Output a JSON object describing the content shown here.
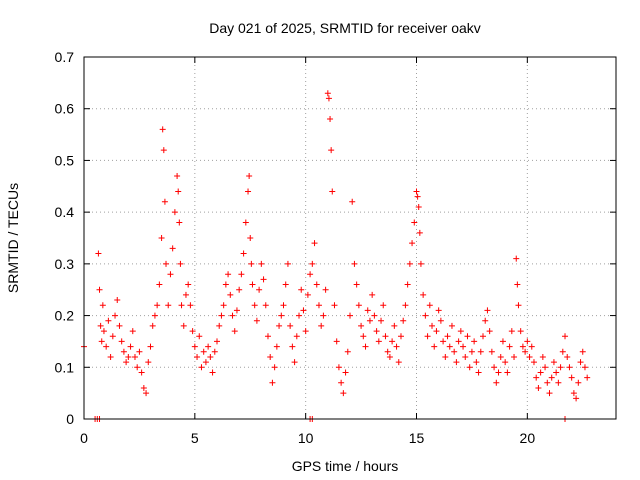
{
  "chart_data": {
    "type": "scatter",
    "title": "Day 021 of 2025, SRMTID for receiver oakv",
    "xlabel": "GPS time / hours",
    "ylabel": "SRMTID / TECUs",
    "xlim": [
      0,
      24
    ],
    "ylim": [
      0,
      0.7
    ],
    "xticks": [
      0,
      5,
      10,
      15,
      20
    ],
    "xtick_labels": [
      "0",
      "5",
      "10",
      "15",
      "20"
    ],
    "yticks": [
      0,
      0.1,
      0.2,
      0.3,
      0.4,
      0.5,
      0.6,
      0.7
    ],
    "ytick_labels": [
      "0",
      "0.1",
      "0.2",
      "0.3",
      "0.4",
      "0.5",
      "0.6",
      "0.7"
    ],
    "grid": true,
    "marker": "+",
    "marker_color": "#ff0000",
    "series": [
      {
        "name": "SRMTID",
        "x": [
          0.0,
          0.5,
          0.65,
          0.7,
          0.75,
          0.8,
          0.85,
          0.9,
          1.0,
          1.1,
          1.2,
          1.3,
          1.4,
          1.5,
          1.6,
          1.7,
          1.8,
          1.9,
          2.0,
          2.1,
          2.2,
          2.3,
          2.4,
          2.5,
          2.6,
          2.7,
          2.8,
          2.9,
          3.0,
          3.1,
          3.2,
          3.3,
          3.4,
          3.5,
          3.55,
          3.6,
          3.65,
          3.7,
          3.8,
          3.9,
          4.0,
          4.1,
          4.2,
          4.25,
          4.3,
          4.35,
          4.4,
          4.5,
          4.6,
          4.7,
          4.8,
          4.9,
          5.0,
          5.1,
          5.2,
          5.3,
          5.4,
          5.5,
          5.6,
          5.7,
          5.8,
          5.9,
          6.0,
          6.1,
          6.2,
          6.3,
          6.4,
          6.5,
          6.6,
          6.7,
          6.8,
          6.9,
          7.0,
          7.1,
          7.2,
          7.3,
          7.4,
          7.45,
          7.5,
          7.55,
          7.6,
          7.7,
          7.8,
          7.9,
          8.0,
          8.1,
          8.2,
          8.3,
          8.4,
          8.5,
          8.6,
          8.7,
          8.8,
          8.9,
          9.0,
          9.1,
          9.2,
          9.3,
          9.4,
          9.5,
          9.6,
          9.7,
          9.8,
          9.9,
          10.0,
          10.1,
          10.2,
          10.3,
          10.4,
          10.5,
          10.6,
          10.7,
          10.8,
          10.9,
          11.0,
          11.05,
          11.1,
          11.15,
          11.2,
          11.3,
          11.4,
          11.5,
          11.6,
          11.7,
          11.8,
          11.9,
          12.0,
          12.1,
          12.2,
          12.3,
          12.4,
          12.5,
          12.6,
          12.7,
          12.8,
          12.9,
          13.0,
          13.1,
          13.2,
          13.3,
          13.4,
          13.5,
          13.6,
          13.7,
          13.8,
          13.9,
          14.0,
          14.1,
          14.2,
          14.3,
          14.4,
          14.5,
          14.6,
          14.7,
          14.8,
          14.9,
          15.0,
          15.05,
          15.1,
          15.15,
          15.2,
          15.3,
          15.4,
          15.5,
          15.6,
          15.7,
          15.8,
          15.9,
          16.0,
          16.1,
          16.2,
          16.3,
          16.4,
          16.5,
          16.6,
          16.7,
          16.8,
          16.9,
          17.0,
          17.1,
          17.2,
          17.3,
          17.4,
          17.5,
          17.6,
          17.7,
          17.8,
          17.9,
          18.0,
          18.1,
          18.2,
          18.3,
          18.4,
          18.5,
          18.6,
          18.7,
          18.8,
          18.9,
          19.0,
          19.1,
          19.2,
          19.3,
          19.4,
          19.5,
          19.55,
          19.6,
          19.7,
          19.8,
          19.9,
          20.0,
          20.1,
          20.2,
          20.3,
          20.4,
          20.5,
          20.6,
          20.7,
          20.8,
          20.9,
          21.0,
          21.1,
          21.2,
          21.3,
          21.4,
          21.5,
          21.6,
          21.7,
          21.8,
          21.9,
          22.0,
          22.1,
          22.2,
          22.3,
          22.4,
          22.5,
          22.6,
          22.7,
          0.6,
          0.7,
          10.2,
          10.3,
          21.7
        ],
        "y": [
          0.14,
          0.0,
          0.32,
          0.25,
          0.18,
          0.15,
          0.22,
          0.17,
          0.14,
          0.19,
          0.12,
          0.16,
          0.2,
          0.23,
          0.18,
          0.15,
          0.13,
          0.11,
          0.12,
          0.14,
          0.17,
          0.12,
          0.1,
          0.13,
          0.09,
          0.06,
          0.05,
          0.11,
          0.14,
          0.18,
          0.2,
          0.22,
          0.26,
          0.35,
          0.56,
          0.52,
          0.42,
          0.3,
          0.22,
          0.28,
          0.33,
          0.4,
          0.47,
          0.44,
          0.38,
          0.3,
          0.22,
          0.18,
          0.24,
          0.26,
          0.22,
          0.17,
          0.14,
          0.12,
          0.16,
          0.1,
          0.13,
          0.11,
          0.14,
          0.12,
          0.09,
          0.13,
          0.15,
          0.18,
          0.2,
          0.22,
          0.26,
          0.28,
          0.24,
          0.2,
          0.17,
          0.21,
          0.25,
          0.28,
          0.32,
          0.38,
          0.44,
          0.47,
          0.35,
          0.3,
          0.26,
          0.22,
          0.19,
          0.25,
          0.3,
          0.27,
          0.22,
          0.16,
          0.12,
          0.07,
          0.1,
          0.14,
          0.18,
          0.2,
          0.22,
          0.26,
          0.3,
          0.18,
          0.14,
          0.11,
          0.16,
          0.2,
          0.25,
          0.21,
          0.17,
          0.24,
          0.28,
          0.3,
          0.34,
          0.26,
          0.22,
          0.18,
          0.2,
          0.25,
          0.63,
          0.62,
          0.58,
          0.52,
          0.44,
          0.22,
          0.15,
          0.1,
          0.07,
          0.05,
          0.09,
          0.13,
          0.2,
          0.42,
          0.3,
          0.26,
          0.22,
          0.18,
          0.16,
          0.14,
          0.21,
          0.19,
          0.24,
          0.2,
          0.17,
          0.15,
          0.19,
          0.22,
          0.16,
          0.13,
          0.12,
          0.15,
          0.18,
          0.14,
          0.11,
          0.16,
          0.19,
          0.22,
          0.26,
          0.3,
          0.34,
          0.38,
          0.44,
          0.43,
          0.41,
          0.36,
          0.3,
          0.24,
          0.2,
          0.16,
          0.22,
          0.18,
          0.14,
          0.17,
          0.21,
          0.19,
          0.15,
          0.12,
          0.16,
          0.14,
          0.18,
          0.13,
          0.11,
          0.15,
          0.17,
          0.14,
          0.12,
          0.16,
          0.1,
          0.13,
          0.15,
          0.11,
          0.09,
          0.13,
          0.16,
          0.19,
          0.21,
          0.17,
          0.13,
          0.1,
          0.07,
          0.09,
          0.12,
          0.15,
          0.11,
          0.09,
          0.14,
          0.17,
          0.12,
          0.31,
          0.26,
          0.22,
          0.17,
          0.14,
          0.13,
          0.15,
          0.12,
          0.14,
          0.11,
          0.08,
          0.06,
          0.09,
          0.12,
          0.1,
          0.07,
          0.05,
          0.08,
          0.11,
          0.09,
          0.07,
          0.1,
          0.13,
          0.16,
          0.12,
          0.1,
          0.08,
          0.05,
          0.04,
          0.07,
          0.11,
          0.13,
          0.1,
          0.08,
          0.0,
          0.0,
          0.0,
          0.0,
          0.0
        ]
      }
    ]
  }
}
